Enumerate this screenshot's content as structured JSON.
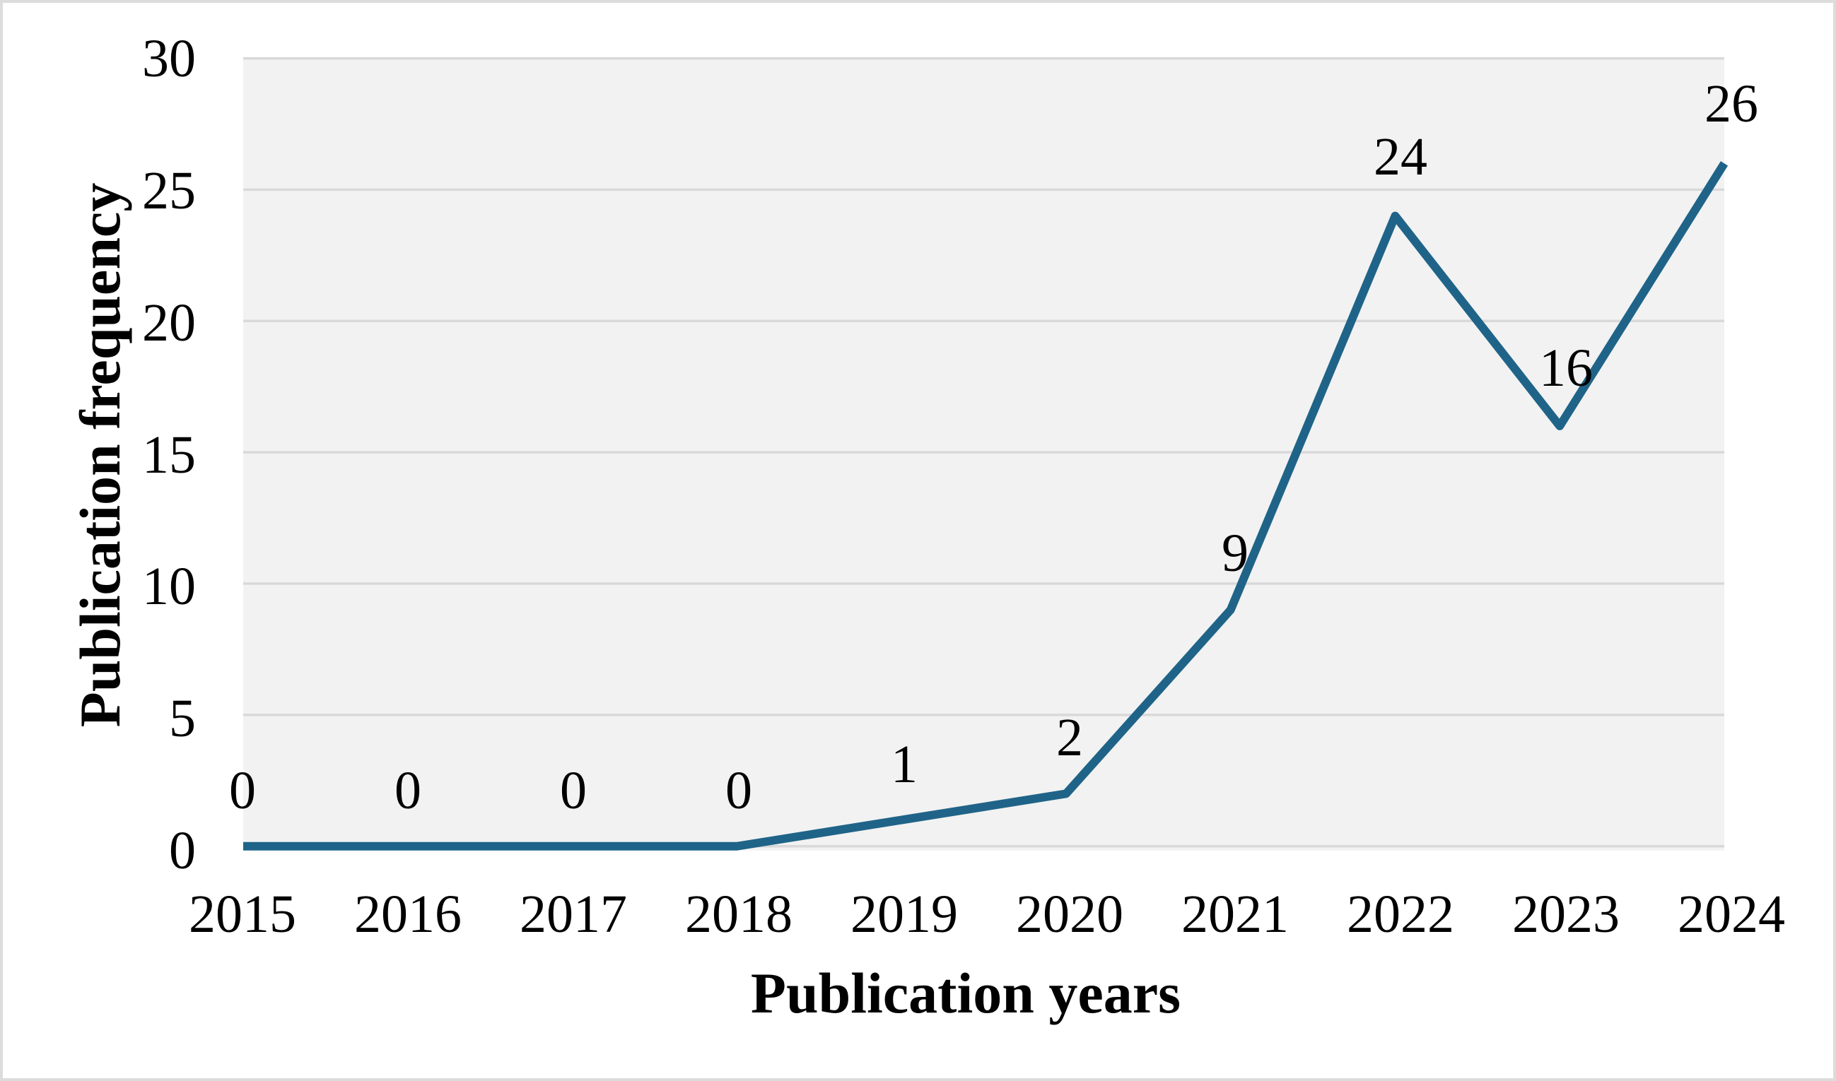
{
  "chart_data": {
    "type": "line",
    "title": "",
    "categories": [
      "2015",
      "2016",
      "2017",
      "2018",
      "2019",
      "2020",
      "2021",
      "2022",
      "2023",
      "2024"
    ],
    "values": [
      0,
      0,
      0,
      0,
      1,
      2,
      9,
      24,
      16,
      26
    ],
    "data_labels": [
      "0",
      "0",
      "0",
      "0",
      "1",
      "2",
      "9",
      "24",
      "16",
      "26"
    ],
    "xlabel": "Publication years",
    "ylabel": "Publication frequency",
    "ylim": [
      0,
      30
    ],
    "yticks": [
      0,
      5,
      10,
      15,
      20,
      25,
      30
    ],
    "grid": "horizontal-on",
    "legend": "none",
    "colors": {
      "line": "#1f6488",
      "plot_background": "#f2f2f2",
      "gridline": "#d9d9d9",
      "frame_border": "#dcdcdc",
      "text": "#000000"
    }
  }
}
